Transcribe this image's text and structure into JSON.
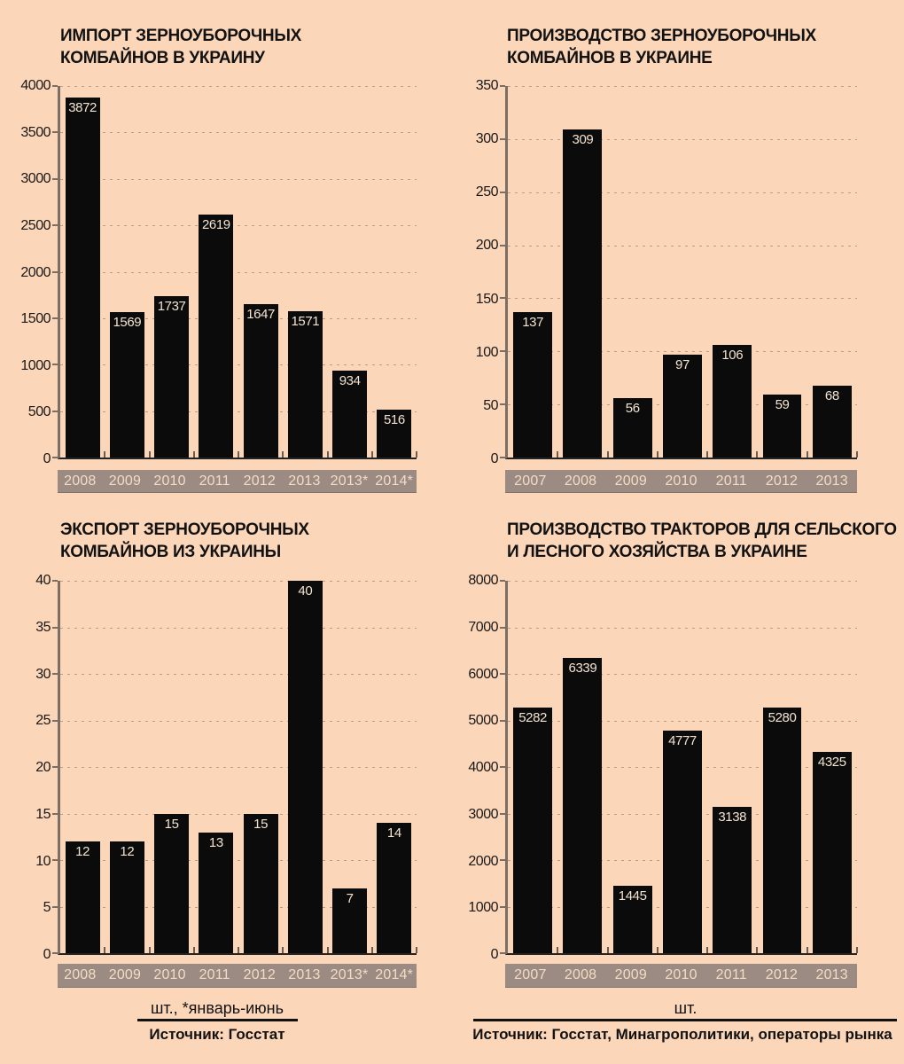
{
  "colors": {
    "background": "#fcd6b8",
    "bar": "#0b0b0b",
    "strip_background": "#9c8b82",
    "strip_text": "#f2dcc5",
    "value_label": "#f3e3d1",
    "gridline": "#bf9c82",
    "axis_line": "#7b6e64",
    "baseline": "#242424",
    "title_text": "#121212"
  },
  "chart_data": [
    {
      "type": "bar",
      "title_lines": [
        "ИМПОРТ ЗЕРНОУБОРОЧНЫХ",
        "КОМБАЙНОВ В УКРАИНУ"
      ],
      "categories": [
        "2008",
        "2009",
        "2010",
        "2011",
        "2012",
        "2013",
        "2013*",
        "2014*"
      ],
      "values": [
        3872,
        1569,
        1737,
        2619,
        1647,
        1571,
        934,
        516
      ],
      "ylim": [
        0,
        4000
      ],
      "ytick_step": 500,
      "grid": "dashed-horizontal",
      "bar_label_position": "inside-top",
      "legend": "none"
    },
    {
      "type": "bar",
      "title_lines": [
        "ПРОИЗВОДСТВО ЗЕРНОУБОРОЧНЫХ",
        "КОМБАЙНОВ В УКРАИНЕ"
      ],
      "categories": [
        "2007",
        "2008",
        "2009",
        "2010",
        "2011",
        "2012",
        "2013"
      ],
      "values": [
        137,
        309,
        56,
        97,
        106,
        59,
        68
      ],
      "ylim": [
        0,
        350
      ],
      "ytick_step": 50,
      "grid": "dashed-horizontal",
      "bar_label_position": "inside-top",
      "legend": "none"
    },
    {
      "type": "bar",
      "title_lines": [
        "ЭКСПОРТ ЗЕРНОУБОРОЧНЫХ",
        "КОМБАЙНОВ ИЗ УКРАИНЫ"
      ],
      "categories": [
        "2008",
        "2009",
        "2010",
        "2011",
        "2012",
        "2013",
        "2013*",
        "2014*"
      ],
      "values": [
        12,
        12,
        15,
        13,
        15,
        40,
        7,
        14
      ],
      "ylim": [
        0,
        40
      ],
      "ytick_step": 5,
      "grid": "dashed-horizontal",
      "bar_label_position": "inside-top",
      "legend": "none"
    },
    {
      "type": "bar",
      "title_lines": [
        "ПРОИЗВОДСТВО ТРАКТОРОВ ДЛЯ СЕЛЬСКОГО",
        "И ЛЕСНОГО ХОЗЯЙСТВА В УКРАИНЕ"
      ],
      "categories": [
        "2007",
        "2008",
        "2009",
        "2010",
        "2011",
        "2012",
        "2013"
      ],
      "values": [
        5282,
        6339,
        1445,
        4777,
        3138,
        5280,
        4325
      ],
      "ylim": [
        0,
        8000
      ],
      "ytick_step": 1000,
      "grid": "dashed-horizontal",
      "bar_label_position": "inside-top",
      "legend": "none"
    }
  ],
  "footers": {
    "left": {
      "unit_note": "шт., *январь-июнь",
      "source": "Источник: Госстат"
    },
    "right": {
      "unit_note": "шт.",
      "source": "Источник: Госстат, Минагрополитики, операторы рынка"
    }
  }
}
